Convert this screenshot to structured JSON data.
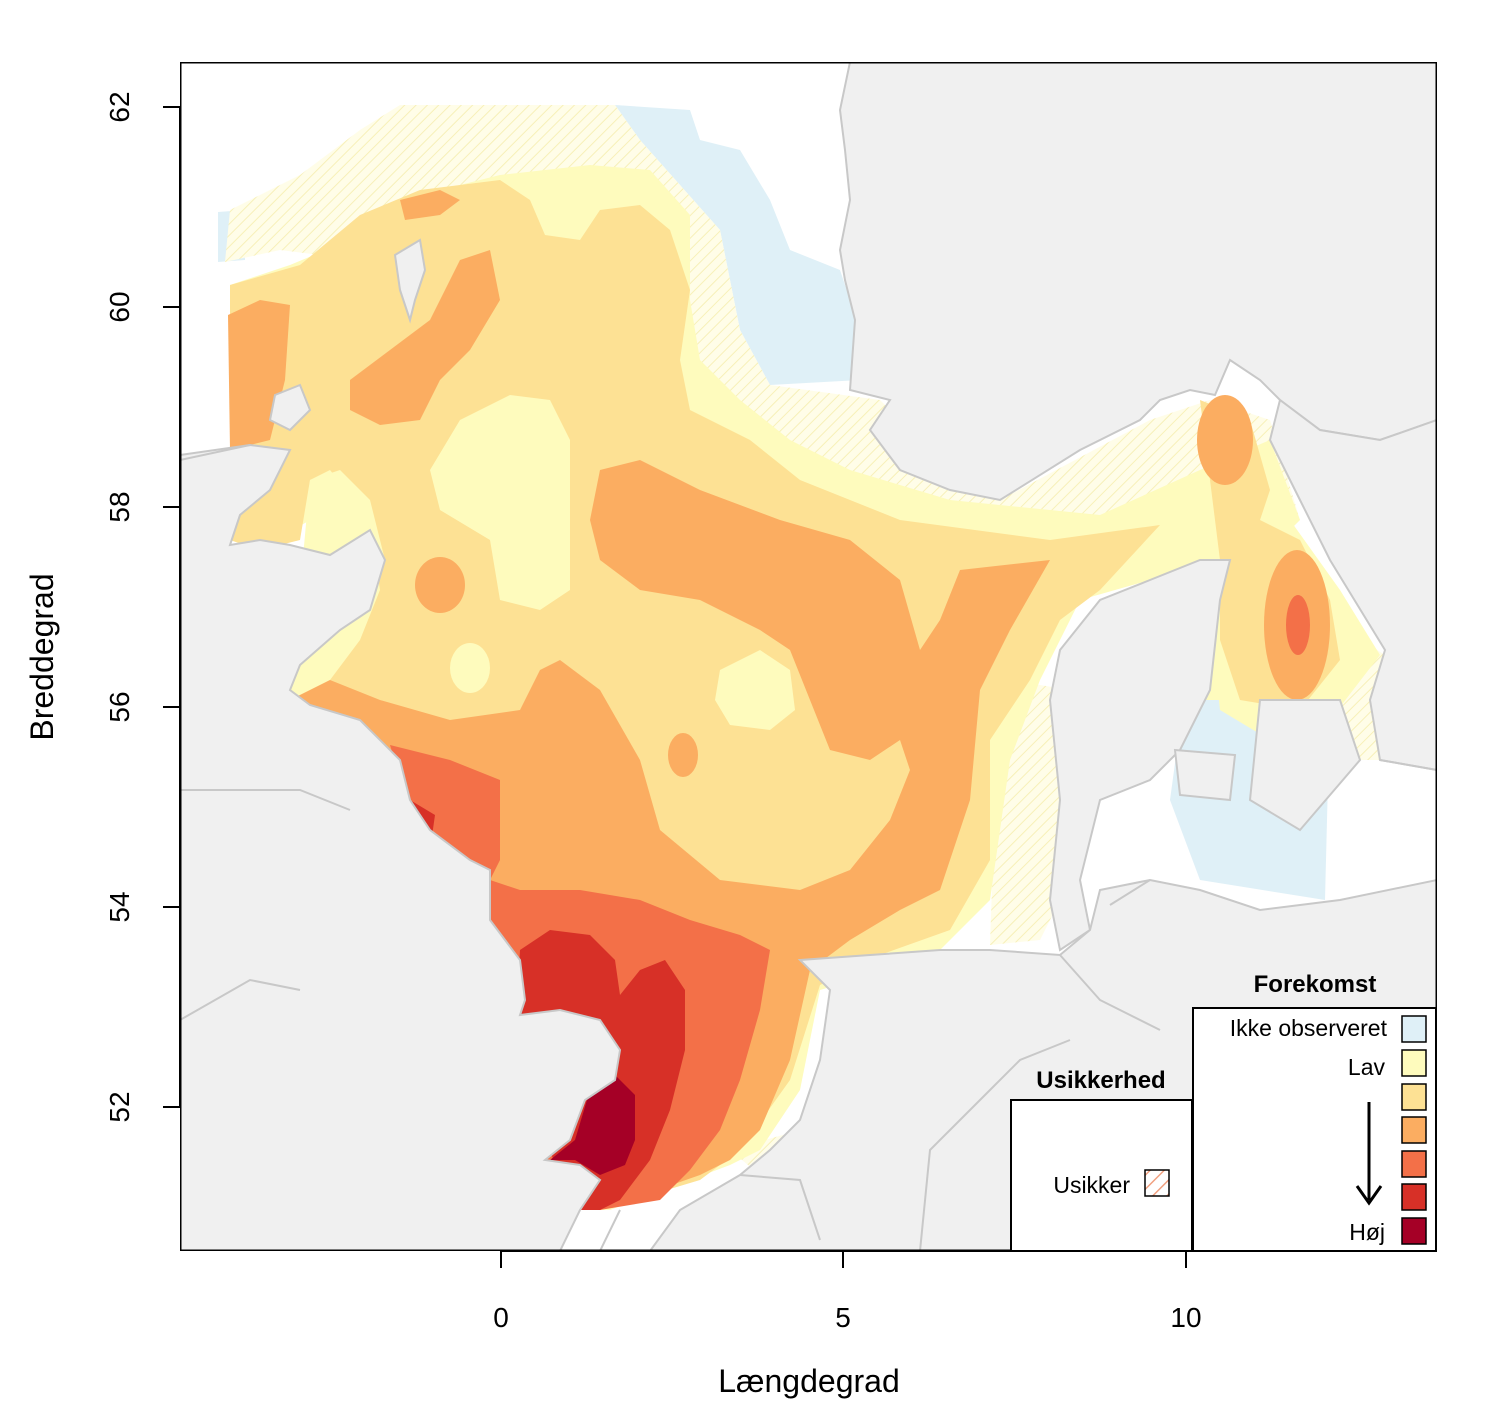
{
  "map": {
    "xlabel": "Længdegrad",
    "ylabel": "Breddegrad",
    "x_ticks": [
      "0",
      "5",
      "10"
    ],
    "y_ticks": [
      "52",
      "54",
      "56",
      "58",
      "60",
      "62"
    ]
  },
  "colors": {
    "land": "#f0f0f0",
    "coast": "#c8c8c8",
    "not_observed": "#dff0f7",
    "level1": "#fefbbd",
    "level2": "#fde194",
    "level3": "#fbad61",
    "level4": "#f37048",
    "level5": "#d73027",
    "level6": "#a50026"
  },
  "legend_abundance": {
    "title": "Forekomst",
    "not_observed_label": "Ikke observeret",
    "low_label": "Lav",
    "high_label": "Høj"
  },
  "legend_uncertainty": {
    "title": "Usikkerhed",
    "uncertain_label": "Usikker"
  }
}
